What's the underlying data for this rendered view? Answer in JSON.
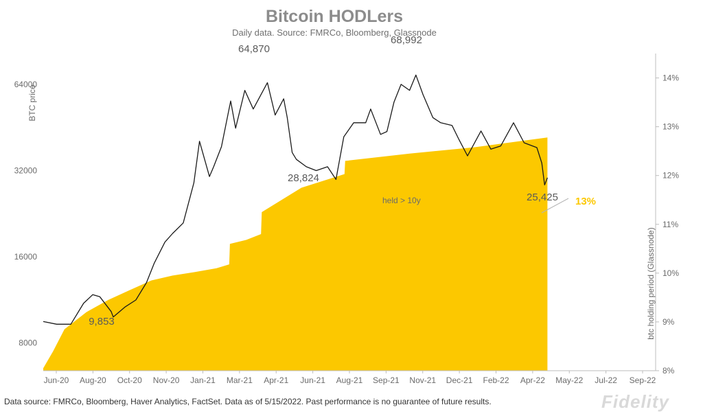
{
  "chart_data": {
    "type": "line",
    "title": "Bitcoin HODLers",
    "subtitle": "Daily data.  Source: FMRCo, Bloomberg, Glassnode",
    "x_ticks": [
      "Jun-20",
      "Aug-20",
      "Oct-20",
      "Nov-20",
      "Jan-21",
      "Mar-21",
      "Apr-21",
      "Jun-21",
      "Aug-21",
      "Sep-21",
      "Nov-21",
      "Dec-21",
      "Feb-22",
      "Apr-22",
      "May-22",
      "Jul-22",
      "Sep-22"
    ],
    "x_range": [
      "2020-06-01",
      "2022-10-15"
    ],
    "y_left": {
      "label": "BTC price",
      "scale": "log",
      "ylim": [
        6400,
        82000
      ],
      "ticks": [
        8000,
        16000,
        32000,
        64000
      ]
    },
    "y_right": {
      "label": "btc holding period (Glassnode)",
      "ylim": [
        8,
        14.5
      ],
      "ticks": [
        8,
        9,
        10,
        11,
        12,
        13,
        14
      ],
      "tick_suffix": "%"
    },
    "series": [
      {
        "axis": "left",
        "kind": "line",
        "color": "#1a1a1a",
        "x": [
          "2020-06-01",
          "2020-06-20",
          "2020-07-10",
          "2020-07-28",
          "2020-08-10",
          "2020-08-20",
          "2020-09-05",
          "2020-09-08",
          "2020-09-25",
          "2020-10-10",
          "2020-10-25",
          "2020-11-05",
          "2020-11-20",
          "2020-12-01",
          "2020-12-16",
          "2020-12-31",
          "2021-01-08",
          "2021-01-22",
          "2021-01-28",
          "2021-02-08",
          "2021-02-21",
          "2021-02-28",
          "2021-03-13",
          "2021-03-25",
          "2021-04-14",
          "2021-04-25",
          "2021-05-07",
          "2021-05-12",
          "2021-05-19",
          "2021-05-25",
          "2021-06-08",
          "2021-06-22",
          "2021-07-08",
          "2021-07-20",
          "2021-07-31",
          "2021-08-14",
          "2021-08-31",
          "2021-09-07",
          "2021-09-21",
          "2021-09-30",
          "2021-10-10",
          "2021-10-20",
          "2021-11-01",
          "2021-11-10",
          "2021-11-20",
          "2021-12-04",
          "2021-12-15",
          "2021-12-31",
          "2022-01-10",
          "2022-01-22",
          "2022-02-10",
          "2022-02-24",
          "2022-03-10",
          "2022-03-28",
          "2022-04-12",
          "2022-04-30",
          "2022-05-07",
          "2022-05-11",
          "2022-05-15"
        ],
        "y": [
          9500,
          9300,
          9300,
          11000,
          11800,
          11600,
          10300,
          9853,
          10700,
          11300,
          13000,
          15200,
          18000,
          19300,
          21000,
          29000,
          40500,
          30500,
          33000,
          38800,
          56000,
          45000,
          61000,
          52500,
          64870,
          50000,
          57000,
          49000,
          37000,
          35000,
          33000,
          32000,
          33000,
          29800,
          42000,
          47000,
          47000,
          52500,
          42800,
          43800,
          55500,
          64000,
          61000,
          68992,
          59000,
          49000,
          47000,
          46000,
          41000,
          36000,
          44000,
          38000,
          39000,
          47000,
          40000,
          38500,
          34000,
          28500,
          30200
        ]
      },
      {
        "name": "held > 10y",
        "axis": "right",
        "kind": "area",
        "color": "#fcc800",
        "x": [
          "2020-06-01",
          "2020-06-15",
          "2020-07-01",
          "2020-08-01",
          "2020-09-01",
          "2020-10-01",
          "2020-11-01",
          "2020-12-01",
          "2021-01-01",
          "2021-02-01",
          "2021-02-19",
          "2021-02-20",
          "2021-03-15",
          "2021-04-05",
          "2021-04-06",
          "2021-06-01",
          "2021-08-01",
          "2021-08-02",
          "2021-11-01",
          "2022-02-01",
          "2022-05-15"
        ],
        "y": [
          8.05,
          8.4,
          8.85,
          9.2,
          9.45,
          9.65,
          9.85,
          9.95,
          10.02,
          10.1,
          10.18,
          10.6,
          10.68,
          10.8,
          11.25,
          11.75,
          12.03,
          12.3,
          12.45,
          12.58,
          12.78
        ]
      }
    ],
    "annotations": [
      "64,870",
      "68,992",
      "9,853",
      "28,824",
      "25,425",
      "13%"
    ],
    "legend": {
      "label": "held > 10y",
      "position": "center"
    },
    "grid": false
  },
  "footer": "Data source: FMRCo, Bloomberg, Haver Analytics, FactSet. Data as of 5/15/2022. Past performance is no guarantee of future results.",
  "logo": "Fidelity"
}
